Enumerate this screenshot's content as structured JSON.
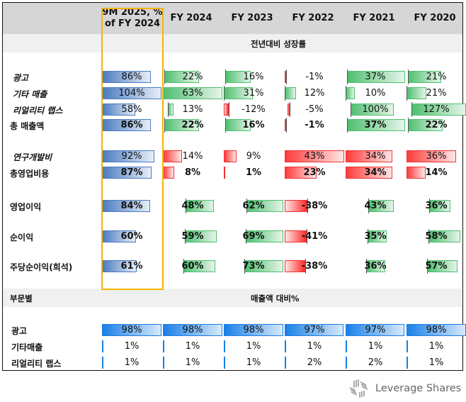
{
  "columns": [
    "9M 2025, %\nof FY 2024",
    "FY 2024",
    "FY 2023",
    "FY 2022",
    "FY 2021",
    "FY 2020"
  ],
  "section1_title": "전년대비 성장률",
  "section2_label": "부문별",
  "section2_title": "매출액 대비%",
  "colors": {
    "blue": "#4a7bc0",
    "green": "#4fbf6f",
    "red": "#ff3b3b",
    "brightblue": "#1a7fe6",
    "highlight": "#f4b400"
  },
  "brand": "Leverage Shares",
  "chart_data": {
    "type": "table",
    "title": "",
    "columns": [
      "9M 2025, % of FY 2024",
      "FY 2024",
      "FY 2023",
      "FY 2022",
      "FY 2021",
      "FY 2020"
    ],
    "sections": [
      {
        "title": "전년대비 성장률",
        "rows": [
          {
            "label": "광고",
            "italic": true,
            "bold": false,
            "values": [
              86,
              22,
              16,
              -1,
              37,
              21
            ],
            "kinds": [
              "blue",
              "growth",
              "growth",
              "growth",
              "growth",
              "growth"
            ]
          },
          {
            "label": "기타 매출",
            "italic": true,
            "bold": false,
            "values": [
              104,
              63,
              31,
              12,
              10,
              21
            ],
            "kinds": [
              "blue",
              "growth",
              "growth",
              "growth",
              "growth",
              "growth"
            ]
          },
          {
            "label": "리얼리티 랩스",
            "italic": true,
            "bold": false,
            "values": [
              58,
              13,
              -12,
              -5,
              100,
              127
            ],
            "kinds": [
              "blue",
              "growth",
              "growth",
              "growth",
              "growth",
              "growth"
            ]
          },
          {
            "label": "총 매출액",
            "italic": false,
            "bold": true,
            "values": [
              86,
              22,
              16,
              -1,
              37,
              22
            ],
            "kinds": [
              "blue",
              "growth",
              "growth",
              "growth",
              "growth",
              "growth"
            ]
          },
          {
            "label": "연구개발비",
            "italic": true,
            "bold": false,
            "values": [
              92,
              14,
              9,
              43,
              34,
              36
            ],
            "kinds": [
              "blue",
              "cost",
              "cost",
              "cost",
              "cost",
              "cost"
            ]
          },
          {
            "label": "총영업비용",
            "italic": false,
            "bold": true,
            "values": [
              87,
              8,
              1,
              23,
              34,
              14
            ],
            "kinds": [
              "blue",
              "cost",
              "cost",
              "cost",
              "cost",
              "cost"
            ]
          },
          {
            "label": "영업이익",
            "italic": false,
            "bold": true,
            "values": [
              84,
              48,
              62,
              -38,
              43,
              36
            ],
            "kinds": [
              "blue",
              "growth",
              "growth",
              "growth",
              "growth",
              "growth"
            ]
          },
          {
            "label": "순이익",
            "italic": false,
            "bold": true,
            "values": [
              60,
              59,
              69,
              -41,
              35,
              58
            ],
            "kinds": [
              "blue",
              "growth",
              "growth",
              "growth",
              "growth",
              "growth"
            ]
          },
          {
            "label": "주당순이익(희석)",
            "italic": false,
            "bold": true,
            "values": [
              61,
              60,
              73,
              -38,
              36,
              57
            ],
            "kinds": [
              "blue",
              "growth",
              "growth",
              "growth",
              "growth",
              "growth"
            ]
          }
        ]
      },
      {
        "title": "매출액 대비%",
        "label": "부문별",
        "rows": [
          {
            "label": "광고",
            "bold": true,
            "values": [
              98,
              98,
              98,
              97,
              97,
              98
            ]
          },
          {
            "label": "기타매출",
            "bold": true,
            "values": [
              1,
              1,
              1,
              1,
              1,
              1
            ]
          },
          {
            "label": "리얼리티 랩스",
            "bold": true,
            "values": [
              1,
              1,
              1,
              2,
              2,
              1
            ]
          }
        ]
      }
    ]
  }
}
